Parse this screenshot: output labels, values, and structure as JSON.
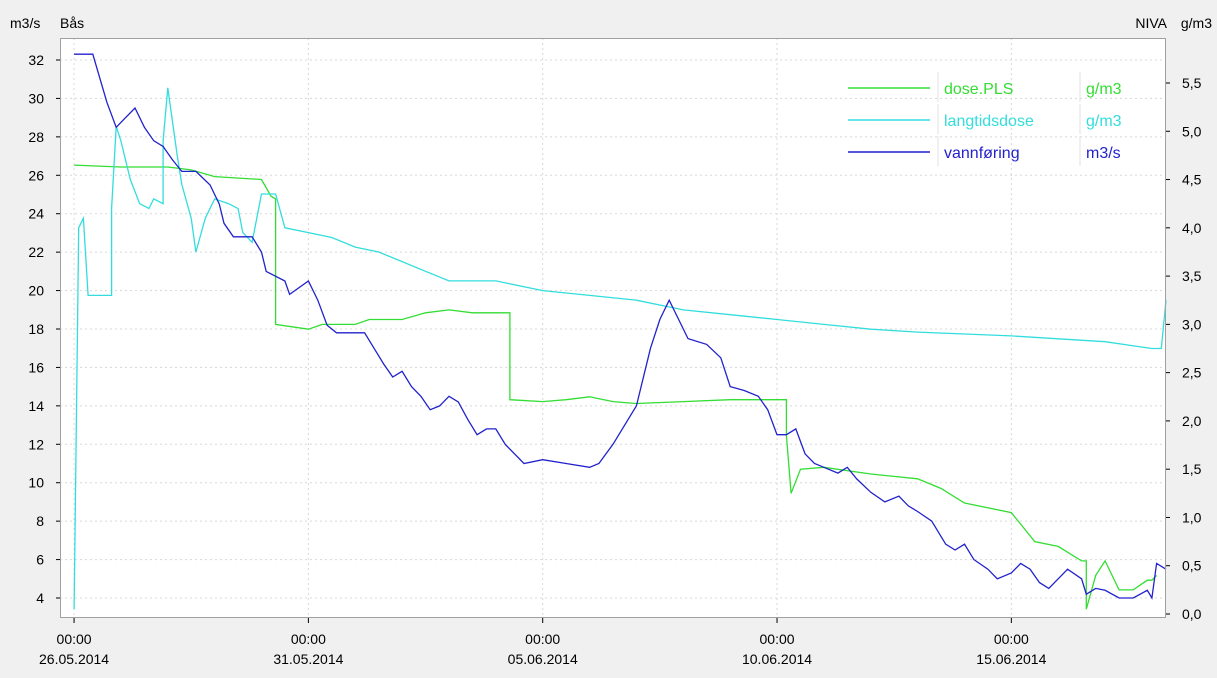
{
  "header": {
    "left_unit": "m3/s",
    "left_station": "Bås",
    "right_station": "NIVA",
    "right_unit": "g/m3"
  },
  "colors": {
    "background": "#f0f0f0",
    "plot_background": "#ffffff",
    "grid": "#d8d8d8",
    "dose_pls": "#33dd33",
    "langtidsdose": "#33dddd",
    "vannforing": "#2222cc"
  },
  "chart_data": {
    "type": "line",
    "title": "",
    "grid": true,
    "legend_position": "top-right",
    "x_axis": {
      "tick_labels": [
        {
          "time": "00:00",
          "date": "26.05.2014"
        },
        {
          "time": "00:00",
          "date": "31.05.2014"
        },
        {
          "time": "00:00",
          "date": "05.06.2014"
        },
        {
          "time": "00:00",
          "date": "10.06.2014"
        },
        {
          "time": "00:00",
          "date": "15.06.2014"
        }
      ],
      "tick_days": [
        0,
        5,
        10,
        15,
        20
      ],
      "range_days": [
        -0.3,
        23.3
      ]
    },
    "y_left": {
      "unit": "m3/s",
      "range": [
        3.0,
        33.3
      ],
      "ticks": [
        "4",
        "6",
        "8",
        "10",
        "12",
        "14",
        "16",
        "18",
        "20",
        "22",
        "24",
        "26",
        "28",
        "30",
        "32"
      ]
    },
    "y_right": {
      "unit": "g/m3",
      "range": [
        0.0,
        5.5
      ],
      "ticks": [
        "0,0",
        "0,5",
        "1,0",
        "1,5",
        "2,0",
        "2,5",
        "3,0",
        "3,5",
        "4,0",
        "4,5",
        "5,0",
        "5,5"
      ]
    },
    "series": [
      {
        "name": "dose.PLS",
        "unit": "g/m3",
        "axis": "right",
        "color": "#33dd33",
        "points": [
          [
            0,
            4.65
          ],
          [
            1,
            4.63
          ],
          [
            2,
            4.63
          ],
          [
            2.5,
            4.6
          ],
          [
            3,
            4.53
          ],
          [
            4,
            4.5
          ],
          [
            4.2,
            4.33
          ],
          [
            4.3,
            4.3
          ],
          [
            4.3,
            3.0
          ],
          [
            5,
            2.95
          ],
          [
            5.3,
            3.0
          ],
          [
            6,
            3.0
          ],
          [
            6.3,
            3.05
          ],
          [
            7,
            3.05
          ],
          [
            7.5,
            3.12
          ],
          [
            8,
            3.15
          ],
          [
            8.5,
            3.12
          ],
          [
            9,
            3.12
          ],
          [
            9.3,
            3.12
          ],
          [
            9.3,
            2.22
          ],
          [
            10,
            2.2
          ],
          [
            10.5,
            2.22
          ],
          [
            11,
            2.25
          ],
          [
            11.5,
            2.2
          ],
          [
            12,
            2.18
          ],
          [
            13,
            2.2
          ],
          [
            14,
            2.22
          ],
          [
            15,
            2.22
          ],
          [
            15.2,
            2.22
          ],
          [
            15.2,
            1.85
          ],
          [
            15.3,
            1.25
          ],
          [
            15.5,
            1.5
          ],
          [
            16,
            1.52
          ],
          [
            17,
            1.45
          ],
          [
            18,
            1.4
          ],
          [
            18.5,
            1.3
          ],
          [
            19,
            1.15
          ],
          [
            20,
            1.05
          ],
          [
            20.5,
            0.75
          ],
          [
            21,
            0.7
          ],
          [
            21.5,
            0.55
          ],
          [
            21.6,
            0.55
          ],
          [
            21.6,
            0.05
          ],
          [
            21.8,
            0.4
          ],
          [
            22,
            0.55
          ],
          [
            22.3,
            0.25
          ],
          [
            22.6,
            0.25
          ],
          [
            22.9,
            0.35
          ],
          [
            23,
            0.35
          ],
          [
            23.1,
            0.4
          ]
        ]
      },
      {
        "name": "langtidsdose",
        "unit": "g/m3",
        "axis": "right",
        "color": "#33dddd",
        "points": [
          [
            0,
            0.05
          ],
          [
            0.1,
            4.0
          ],
          [
            0.2,
            4.1
          ],
          [
            0.3,
            3.3
          ],
          [
            0.6,
            3.3
          ],
          [
            0.8,
            3.3
          ],
          [
            0.8,
            4.2
          ],
          [
            0.9,
            5.05
          ],
          [
            1.0,
            4.9
          ],
          [
            1.2,
            4.5
          ],
          [
            1.4,
            4.25
          ],
          [
            1.6,
            4.2
          ],
          [
            1.7,
            4.3
          ],
          [
            1.9,
            4.25
          ],
          [
            1.9,
            4.9
          ],
          [
            2.0,
            5.45
          ],
          [
            2.1,
            5.1
          ],
          [
            2.2,
            4.75
          ],
          [
            2.3,
            4.45
          ],
          [
            2.5,
            4.1
          ],
          [
            2.6,
            3.75
          ],
          [
            2.8,
            4.1
          ],
          [
            3.0,
            4.3
          ],
          [
            3.3,
            4.25
          ],
          [
            3.5,
            4.2
          ],
          [
            3.6,
            3.95
          ],
          [
            3.8,
            3.85
          ],
          [
            4.0,
            4.35
          ],
          [
            4.3,
            4.35
          ],
          [
            4.5,
            4.0
          ],
          [
            5,
            3.95
          ],
          [
            5.5,
            3.9
          ],
          [
            6,
            3.8
          ],
          [
            6.5,
            3.75
          ],
          [
            7,
            3.65
          ],
          [
            7.5,
            3.55
          ],
          [
            8,
            3.45
          ],
          [
            9,
            3.45
          ],
          [
            10,
            3.35
          ],
          [
            11,
            3.3
          ],
          [
            12,
            3.25
          ],
          [
            13,
            3.15
          ],
          [
            14,
            3.1
          ],
          [
            15,
            3.05
          ],
          [
            16,
            3.0
          ],
          [
            17,
            2.95
          ],
          [
            18,
            2.92
          ],
          [
            19,
            2.9
          ],
          [
            20,
            2.88
          ],
          [
            21,
            2.85
          ],
          [
            22,
            2.82
          ],
          [
            23.0,
            2.75
          ],
          [
            23.2,
            2.75
          ],
          [
            23.3,
            3.25
          ]
        ]
      },
      {
        "name": "vannføring",
        "unit": "m3/s",
        "axis": "left",
        "color": "#2222cc",
        "points": [
          [
            0,
            32.3
          ],
          [
            0.4,
            32.3
          ],
          [
            0.7,
            29.8
          ],
          [
            0.9,
            28.5
          ],
          [
            1.1,
            29.0
          ],
          [
            1.3,
            29.5
          ],
          [
            1.5,
            28.5
          ],
          [
            1.7,
            27.8
          ],
          [
            1.9,
            27.5
          ],
          [
            2.1,
            26.8
          ],
          [
            2.3,
            26.2
          ],
          [
            2.6,
            26.2
          ],
          [
            2.9,
            25.5
          ],
          [
            3.1,
            24.5
          ],
          [
            3.2,
            23.5
          ],
          [
            3.4,
            22.8
          ],
          [
            3.8,
            22.8
          ],
          [
            4.0,
            22.0
          ],
          [
            4.1,
            21.0
          ],
          [
            4.5,
            20.5
          ],
          [
            4.6,
            19.8
          ],
          [
            5.0,
            20.5
          ],
          [
            5.2,
            19.5
          ],
          [
            5.4,
            18.2
          ],
          [
            5.6,
            17.8
          ],
          [
            6.2,
            17.8
          ],
          [
            6.4,
            17.0
          ],
          [
            6.6,
            16.2
          ],
          [
            6.8,
            15.5
          ],
          [
            7.0,
            15.8
          ],
          [
            7.2,
            15.0
          ],
          [
            7.4,
            14.5
          ],
          [
            7.6,
            13.8
          ],
          [
            7.8,
            14.0
          ],
          [
            8.0,
            14.5
          ],
          [
            8.2,
            14.2
          ],
          [
            8.4,
            13.3
          ],
          [
            8.6,
            12.5
          ],
          [
            8.8,
            12.8
          ],
          [
            9.0,
            12.8
          ],
          [
            9.2,
            12.0
          ],
          [
            9.4,
            11.5
          ],
          [
            9.6,
            11.0
          ],
          [
            10,
            11.2
          ],
          [
            10.5,
            11.0
          ],
          [
            11,
            10.8
          ],
          [
            11.2,
            11.0
          ],
          [
            11.5,
            12.0
          ],
          [
            12,
            14.0
          ],
          [
            12.3,
            17.0
          ],
          [
            12.5,
            18.5
          ],
          [
            12.7,
            19.5
          ],
          [
            12.9,
            18.5
          ],
          [
            13.1,
            17.5
          ],
          [
            13.5,
            17.2
          ],
          [
            13.8,
            16.5
          ],
          [
            14.0,
            15.0
          ],
          [
            14.3,
            14.8
          ],
          [
            14.6,
            14.5
          ],
          [
            14.8,
            13.8
          ],
          [
            15.0,
            12.5
          ],
          [
            15.2,
            12.5
          ],
          [
            15.4,
            12.8
          ],
          [
            15.6,
            11.5
          ],
          [
            15.8,
            11.0
          ],
          [
            16.0,
            10.8
          ],
          [
            16.3,
            10.5
          ],
          [
            16.5,
            10.8
          ],
          [
            16.7,
            10.2
          ],
          [
            17.0,
            9.5
          ],
          [
            17.3,
            9.0
          ],
          [
            17.6,
            9.3
          ],
          [
            17.8,
            8.8
          ],
          [
            18.0,
            8.5
          ],
          [
            18.3,
            8.0
          ],
          [
            18.6,
            6.8
          ],
          [
            18.8,
            6.5
          ],
          [
            19.0,
            6.8
          ],
          [
            19.2,
            6.0
          ],
          [
            19.5,
            5.5
          ],
          [
            19.7,
            5.0
          ],
          [
            20.0,
            5.3
          ],
          [
            20.2,
            5.8
          ],
          [
            20.4,
            5.5
          ],
          [
            20.6,
            4.8
          ],
          [
            20.8,
            4.5
          ],
          [
            21.0,
            5.0
          ],
          [
            21.2,
            5.5
          ],
          [
            21.5,
            5.0
          ],
          [
            21.6,
            4.2
          ],
          [
            21.8,
            4.5
          ],
          [
            22.0,
            4.4
          ],
          [
            22.3,
            4.0
          ],
          [
            22.6,
            4.0
          ],
          [
            22.9,
            4.4
          ],
          [
            23.0,
            4.0
          ],
          [
            23.1,
            5.8
          ],
          [
            23.3,
            5.5
          ]
        ]
      }
    ]
  }
}
